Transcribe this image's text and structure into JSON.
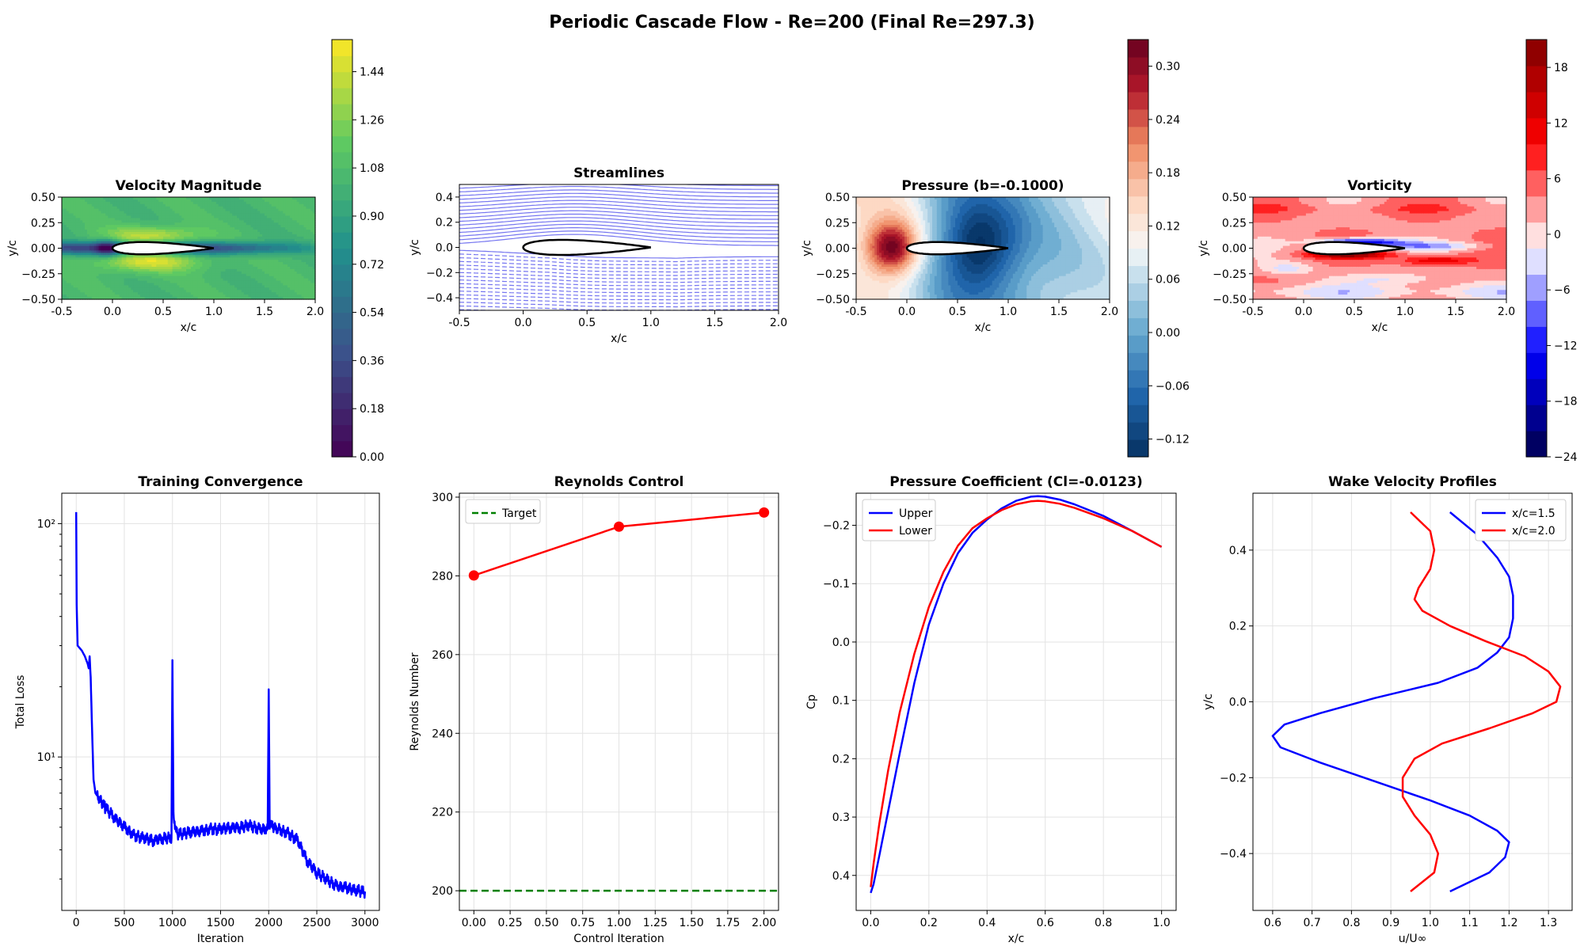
{
  "figure": {
    "title": "Periodic Cascade Flow - Re=200 (Final Re=297.3)"
  },
  "chart_data": [
    {
      "type": "heatmap",
      "title": "Velocity Magnitude",
      "xlabel": "x/c",
      "ylabel": "y/c",
      "xlim": [
        -0.5,
        2.0
      ],
      "ylim": [
        -0.5,
        0.5
      ],
      "x_ticks": [
        "-0.5",
        "0.0",
        "0.5",
        "1.0",
        "1.5",
        "2.0"
      ],
      "y_ticks": [
        "0.50",
        "0.25",
        "0.00",
        "−0.25",
        "−0.50"
      ],
      "colormap": "viridis",
      "colorbar": {
        "min": 0.0,
        "max": 1.56,
        "ticks": [
          "1.44",
          "1.26",
          "1.08",
          "0.90",
          "0.72",
          "0.54",
          "0.36",
          "0.18",
          "0.00"
        ]
      }
    },
    {
      "type": "line",
      "title": "Streamlines",
      "xlabel": "x/c",
      "ylabel": "y/c",
      "xlim": [
        -0.5,
        2.0
      ],
      "ylim": [
        -0.5,
        0.5
      ],
      "x_ticks": [
        "-0.5",
        "0.0",
        "0.5",
        "1.0",
        "1.5",
        "2.0"
      ],
      "y_ticks": [
        "0.4",
        "0.2",
        "0.0",
        "−0.2",
        "−0.4"
      ],
      "line_color": "#6666ee"
    },
    {
      "type": "heatmap",
      "title": "Pressure (b=-0.1000)",
      "xlabel": "x/c",
      "ylabel": "y/c",
      "xlim": [
        -0.5,
        2.0
      ],
      "ylim": [
        -0.5,
        0.5
      ],
      "x_ticks": [
        "-0.5",
        "0.0",
        "0.5",
        "1.0",
        "1.5",
        "2.0"
      ],
      "y_ticks": [
        "0.50",
        "0.25",
        "0.00",
        "−0.25",
        "−0.50"
      ],
      "colormap": "RdBu_r",
      "colorbar": {
        "min": -0.14,
        "max": 0.33,
        "ticks": [
          "0.30",
          "0.24",
          "0.18",
          "0.12",
          "0.06",
          "0.00",
          "−0.06",
          "−0.12"
        ]
      }
    },
    {
      "type": "heatmap",
      "title": "Vorticity",
      "xlabel": "x/c",
      "ylabel": "y/c",
      "xlim": [
        -0.5,
        2.0
      ],
      "ylim": [
        -0.5,
        0.5
      ],
      "x_ticks": [
        "-0.5",
        "0.0",
        "0.5",
        "1.0",
        "1.5",
        "2.0"
      ],
      "y_ticks": [
        "0.50",
        "0.25",
        "0.00",
        "−0.25",
        "−0.50"
      ],
      "colormap": "seismic",
      "colorbar": {
        "min": -24,
        "max": 21,
        "ticks": [
          "18",
          "12",
          "6",
          "0",
          "−6",
          "−12",
          "−18",
          "−24"
        ]
      }
    },
    {
      "type": "line",
      "title": "Training Convergence",
      "xlabel": "Iteration",
      "ylabel": "Total Loss",
      "yscale": "log",
      "xlim": [
        -150,
        3150
      ],
      "ylim": [
        2.2,
        135
      ],
      "x_ticks": [
        "0",
        "500",
        "1000",
        "1500",
        "2000",
        "2500",
        "3000"
      ],
      "y_ticks": [
        "10²",
        "10¹"
      ],
      "series": [
        {
          "color": "#0000ff",
          "x": [
            0,
            5,
            15,
            30,
            60,
            90,
            120,
            130,
            140,
            150,
            165,
            180,
            200,
            220,
            260,
            300,
            400,
            500,
            600,
            700,
            800,
            900,
            990,
            1000,
            1010,
            1050,
            1100,
            1200,
            1300,
            1400,
            1500,
            1600,
            1700,
            1800,
            1900,
            1990,
            2000,
            2010,
            2050,
            2100,
            2200,
            2300,
            2400,
            2500,
            2600,
            2700,
            2800,
            2900,
            3000
          ],
          "y": [
            112,
            45,
            30,
            29.5,
            28.5,
            27,
            25,
            24,
            27,
            22,
            13,
            8,
            7,
            6.8,
            6.5,
            6.1,
            5.5,
            5.0,
            4.6,
            4.5,
            4.4,
            4.5,
            4.5,
            26,
            5.5,
            4.7,
            4.7,
            4.8,
            4.8,
            4.9,
            4.9,
            5.0,
            5.0,
            5.1,
            4.9,
            4.9,
            19.5,
            5.2,
            5.0,
            4.9,
            4.7,
            4.4,
            3.6,
            3.2,
            3.0,
            2.8,
            2.75,
            2.7,
            2.65
          ]
        }
      ]
    },
    {
      "type": "line",
      "title": "Reynolds Control",
      "xlabel": "Control Iteration",
      "ylabel": "Reynolds Number",
      "xlim": [
        -0.1,
        2.1
      ],
      "ylim": [
        195,
        301
      ],
      "x_ticks": [
        "0.00",
        "0.25",
        "0.50",
        "0.75",
        "1.00",
        "1.25",
        "1.50",
        "1.75",
        "2.00"
      ],
      "y_ticks": [
        "300",
        "280",
        "260",
        "240",
        "220",
        "200"
      ],
      "series": [
        {
          "name": "Target",
          "color": "#008000",
          "dashed": true,
          "constant": 200
        },
        {
          "color": "#ff0000",
          "x": [
            0,
            1,
            2
          ],
          "y": [
            280.1,
            292.5,
            296.1
          ]
        }
      ]
    },
    {
      "type": "line",
      "title": "Pressure Coefficient (Cl=-0.0123)",
      "xlabel": "x/c",
      "ylabel": "Cp",
      "y_inverted": true,
      "xlim": [
        -0.05,
        1.05
      ],
      "ylim": [
        0.46,
        -0.255
      ],
      "x_ticks": [
        "0.0",
        "0.2",
        "0.4",
        "0.6",
        "0.8",
        "1.0"
      ],
      "y_ticks": [
        "−0.2",
        "−0.1",
        "0.0",
        "0.1",
        "0.2",
        "0.3",
        "0.4"
      ],
      "series": [
        {
          "name": "Upper",
          "color": "#0000ff",
          "x": [
            0.0,
            0.01,
            0.03,
            0.06,
            0.1,
            0.15,
            0.2,
            0.25,
            0.3,
            0.35,
            0.4,
            0.45,
            0.5,
            0.55,
            0.575,
            0.6,
            0.65,
            0.7,
            0.8,
            0.9,
            1.0
          ],
          "y": [
            0.43,
            0.415,
            0.365,
            0.29,
            0.19,
            0.07,
            -0.03,
            -0.1,
            -0.152,
            -0.187,
            -0.21,
            -0.229,
            -0.242,
            -0.249,
            -0.25,
            -0.249,
            -0.244,
            -0.236,
            -0.216,
            -0.19,
            -0.163
          ]
        },
        {
          "name": "Lower",
          "color": "#ff0000",
          "x": [
            0.0,
            0.01,
            0.03,
            0.06,
            0.1,
            0.15,
            0.2,
            0.25,
            0.3,
            0.35,
            0.4,
            0.45,
            0.5,
            0.55,
            0.575,
            0.6,
            0.65,
            0.7,
            0.8,
            0.9,
            1.0
          ],
          "y": [
            0.42,
            0.38,
            0.31,
            0.22,
            0.12,
            0.02,
            -0.06,
            -0.12,
            -0.165,
            -0.195,
            -0.212,
            -0.226,
            -0.236,
            -0.241,
            -0.242,
            -0.241,
            -0.237,
            -0.23,
            -0.212,
            -0.19,
            -0.163
          ]
        }
      ]
    },
    {
      "type": "line",
      "title": "Wake Velocity Profiles",
      "xlabel": "u/U∞",
      "ylabel": "y/c",
      "xlim": [
        0.55,
        1.36
      ],
      "ylim": [
        -0.55,
        0.55
      ],
      "x_ticks": [
        "0.6",
        "0.7",
        "0.8",
        "0.9",
        "1.0",
        "1.1",
        "1.2",
        "1.3"
      ],
      "y_ticks": [
        "0.4",
        "0.2",
        "0.0",
        "−0.2",
        "−0.4"
      ],
      "series": [
        {
          "name": "x/c=1.5",
          "color": "#0000ff",
          "x": [
            1.05,
            1.12,
            1.17,
            1.2,
            1.21,
            1.21,
            1.2,
            1.17,
            1.12,
            1.02,
            0.86,
            0.72,
            0.63,
            0.6,
            0.62,
            0.72,
            0.86,
            1.0,
            1.1,
            1.17,
            1.2,
            1.19,
            1.15,
            1.05
          ],
          "y": [
            0.5,
            0.44,
            0.38,
            0.33,
            0.28,
            0.22,
            0.17,
            0.13,
            0.09,
            0.05,
            0.01,
            -0.03,
            -0.06,
            -0.09,
            -0.12,
            -0.16,
            -0.21,
            -0.26,
            -0.3,
            -0.34,
            -0.37,
            -0.41,
            -0.45,
            -0.5
          ]
        },
        {
          "name": "x/c=2.0",
          "color": "#ff0000",
          "x": [
            0.95,
            1.0,
            1.01,
            1.0,
            0.97,
            0.96,
            0.98,
            1.05,
            1.14,
            1.24,
            1.3,
            1.33,
            1.32,
            1.26,
            1.15,
            1.03,
            0.96,
            0.93,
            0.93,
            0.96,
            1.0,
            1.02,
            1.01,
            0.95
          ],
          "y": [
            0.5,
            0.45,
            0.4,
            0.35,
            0.3,
            0.27,
            0.24,
            0.2,
            0.16,
            0.12,
            0.08,
            0.04,
            0.0,
            -0.03,
            -0.07,
            -0.11,
            -0.15,
            -0.2,
            -0.25,
            -0.3,
            -0.35,
            -0.4,
            -0.45,
            -0.5
          ]
        }
      ]
    }
  ]
}
